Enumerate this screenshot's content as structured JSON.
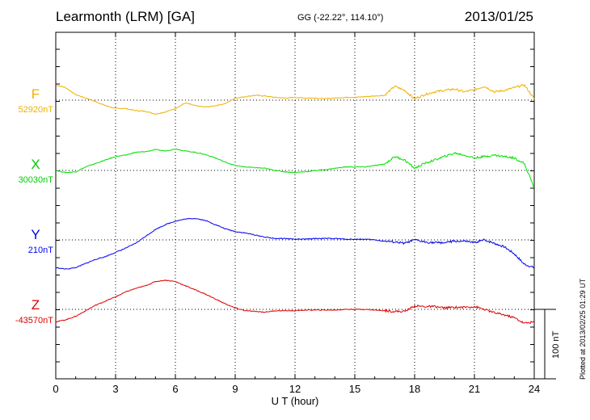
{
  "header": {
    "station": "Learmonth (LRM)  [GA]",
    "coords": "GG (-22.22°, 114.10°)",
    "date": "2013/01/25"
  },
  "footer": "Plotted at 2013/02/25 01:29 UT",
  "chart_data": {
    "type": "line",
    "xlabel": "U T (hour)",
    "xlim": [
      0,
      24
    ],
    "xticks": [
      "0",
      "3",
      "6",
      "9",
      "12",
      "15",
      "18",
      "21",
      "24"
    ],
    "unit": "nT",
    "scale_bar": {
      "value": 100,
      "label": "100 nT"
    },
    "grid": true,
    "series": [
      {
        "name": "F",
        "baseline_label": "52920nT",
        "color": "#f0b000",
        "x": [
          0,
          0.5,
          1,
          1.5,
          2,
          2.5,
          3,
          3.5,
          4,
          4.5,
          5,
          5.5,
          6,
          6.5,
          7,
          7.5,
          8,
          8.5,
          9,
          9.5,
          10,
          10.5,
          11,
          11.5,
          12,
          12.5,
          13,
          13.5,
          14,
          14.5,
          15,
          15.5,
          16,
          16.5,
          17,
          17.5,
          18,
          18.5,
          19,
          19.5,
          20,
          20.5,
          21,
          21.5,
          22,
          22.5,
          23,
          23.5,
          24
        ],
        "values": [
          22,
          18,
          8,
          3,
          -2,
          -8,
          -12,
          -12,
          -15,
          -16,
          -20,
          -17,
          -12,
          -4,
          -8,
          -10,
          -8,
          -5,
          3,
          5,
          7,
          6,
          4,
          3,
          4,
          3,
          3,
          2,
          3,
          4,
          4,
          5,
          6,
          7,
          20,
          14,
          2,
          8,
          12,
          14,
          16,
          12,
          15,
          20,
          12,
          14,
          18,
          22,
          2
        ]
      },
      {
        "name": "X",
        "baseline_label": "30030nT",
        "color": "#00e000",
        "x": [
          0,
          0.5,
          1,
          1.5,
          2,
          2.5,
          3,
          3.5,
          4,
          4.5,
          5,
          5.5,
          6,
          6.5,
          7,
          7.5,
          8,
          8.5,
          9,
          9.5,
          10,
          10.5,
          11,
          11.5,
          12,
          12.5,
          13,
          13.5,
          14,
          14.5,
          15,
          15.5,
          16,
          16.5,
          17,
          17.5,
          18,
          18.5,
          19,
          19.5,
          20,
          20.5,
          21,
          21.5,
          22,
          22.5,
          23,
          23.5,
          24
        ],
        "values": [
          0,
          -3,
          -2,
          5,
          10,
          15,
          20,
          22,
          26,
          27,
          30,
          28,
          31,
          28,
          26,
          23,
          18,
          12,
          7,
          5,
          4,
          3,
          0,
          -2,
          -3,
          -2,
          0,
          1,
          3,
          5,
          5,
          5,
          7,
          9,
          20,
          15,
          3,
          10,
          15,
          20,
          25,
          22,
          18,
          20,
          22,
          20,
          18,
          10,
          -25
        ]
      },
      {
        "name": "Y",
        "baseline_label": "210nT",
        "color": "#0000ee",
        "x": [
          0,
          0.5,
          1,
          1.5,
          2,
          2.5,
          3,
          3.5,
          4,
          4.5,
          5,
          5.5,
          6,
          6.5,
          7,
          7.5,
          8,
          8.5,
          9,
          9.5,
          10,
          10.5,
          11,
          11.5,
          12,
          12.5,
          13,
          13.5,
          14,
          14.5,
          15,
          15.5,
          16,
          16.5,
          17,
          17.5,
          18,
          18.5,
          19,
          19.5,
          20,
          20.5,
          21,
          21.5,
          22,
          22.5,
          23,
          23.5,
          24
        ],
        "values": [
          -40,
          -42,
          -40,
          -34,
          -28,
          -24,
          -18,
          -12,
          -5,
          5,
          15,
          22,
          27,
          30,
          31,
          28,
          22,
          16,
          12,
          10,
          7,
          4,
          2,
          2,
          1,
          1,
          2,
          2,
          2,
          1,
          1,
          1,
          0,
          -2,
          -3,
          -5,
          0,
          -3,
          -4,
          -4,
          -2,
          -2,
          -4,
          0,
          -5,
          -10,
          -20,
          -35,
          -40
        ]
      },
      {
        "name": "Z",
        "baseline_label": "-43570nT",
        "color": "#dd0000",
        "x": [
          0,
          0.5,
          1,
          1.5,
          2,
          2.5,
          3,
          3.5,
          4,
          4.5,
          5,
          5.5,
          6,
          6.5,
          7,
          7.5,
          8,
          8.5,
          9,
          9.5,
          10,
          10.5,
          11,
          11.5,
          12,
          12.5,
          13,
          13.5,
          14,
          14.5,
          15,
          15.5,
          16,
          16.5,
          17,
          17.5,
          18,
          18.5,
          19,
          19.5,
          20,
          20.5,
          21,
          21.5,
          22,
          22.5,
          23,
          23.5,
          24
        ],
        "values": [
          -18,
          -15,
          -10,
          -2,
          6,
          12,
          18,
          25,
          30,
          34,
          40,
          42,
          40,
          34,
          28,
          22,
          15,
          8,
          2,
          -2,
          -3,
          -4,
          -2,
          -2,
          -2,
          -1,
          -1,
          -1,
          -1,
          0,
          0,
          0,
          -1,
          -2,
          -3,
          -3,
          5,
          4,
          4,
          2,
          3,
          3,
          4,
          0,
          -5,
          -8,
          -12,
          -20,
          -18
        ]
      }
    ]
  }
}
